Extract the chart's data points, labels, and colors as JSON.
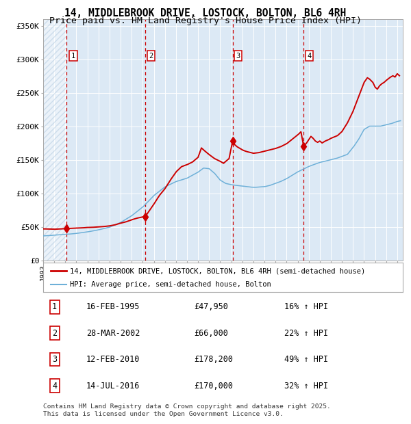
{
  "title": "14, MIDDLEBROOK DRIVE, LOSTOCK, BOLTON, BL6 4RH",
  "subtitle": "Price paid vs. HM Land Registry's House Price Index (HPI)",
  "ylim": [
    0,
    360000
  ],
  "yticks": [
    0,
    50000,
    100000,
    150000,
    200000,
    250000,
    300000,
    350000
  ],
  "ytick_labels": [
    "£0",
    "£50K",
    "£100K",
    "£150K",
    "£200K",
    "£250K",
    "£300K",
    "£350K"
  ],
  "plot_bg_color": "#dce9f5",
  "grid_color": "#ffffff",
  "red_line_color": "#cc0000",
  "blue_line_color": "#6eb0d8",
  "vline_color": "#cc0000",
  "sale_dates": [
    1995.12,
    2002.24,
    2010.12,
    2016.54
  ],
  "sale_prices": [
    47950,
    66000,
    178200,
    170000
  ],
  "sale_labels": [
    "1",
    "2",
    "3",
    "4"
  ],
  "legend_entries": [
    "14, MIDDLEBROOK DRIVE, LOSTOCK, BOLTON, BL6 4RH (semi-detached house)",
    "HPI: Average price, semi-detached house, Bolton"
  ],
  "table_rows": [
    [
      "1",
      "16-FEB-1995",
      "£47,950",
      "16% ↑ HPI"
    ],
    [
      "2",
      "28-MAR-2002",
      "£66,000",
      "22% ↑ HPI"
    ],
    [
      "3",
      "12-FEB-2010",
      "£178,200",
      "49% ↑ HPI"
    ],
    [
      "4",
      "14-JUL-2016",
      "£170,000",
      "32% ↑ HPI"
    ]
  ],
  "footer": "Contains HM Land Registry data © Crown copyright and database right 2025.\nThis data is licensed under the Open Government Licence v3.0.",
  "hpi_waypoints": [
    [
      1993.0,
      37000
    ],
    [
      1993.5,
      37500
    ],
    [
      1994.0,
      38200
    ],
    [
      1994.5,
      38800
    ],
    [
      1995.0,
      39500
    ],
    [
      1995.5,
      40000
    ],
    [
      1996.0,
      40800
    ],
    [
      1997.0,
      43000
    ],
    [
      1998.0,
      46000
    ],
    [
      1999.0,
      50000
    ],
    [
      2000.0,
      57000
    ],
    [
      2001.0,
      67000
    ],
    [
      2002.0,
      80000
    ],
    [
      2003.0,
      97000
    ],
    [
      2004.0,
      110000
    ],
    [
      2005.0,
      118000
    ],
    [
      2006.0,
      123000
    ],
    [
      2007.0,
      132000
    ],
    [
      2007.5,
      138000
    ],
    [
      2008.0,
      137000
    ],
    [
      2008.5,
      130000
    ],
    [
      2009.0,
      120000
    ],
    [
      2009.5,
      115000
    ],
    [
      2010.0,
      113000
    ],
    [
      2010.5,
      112000
    ],
    [
      2011.0,
      111000
    ],
    [
      2011.5,
      110000
    ],
    [
      2012.0,
      109000
    ],
    [
      2012.5,
      109500
    ],
    [
      2013.0,
      110000
    ],
    [
      2013.5,
      112000
    ],
    [
      2014.0,
      115000
    ],
    [
      2014.5,
      118000
    ],
    [
      2015.0,
      122000
    ],
    [
      2015.5,
      127000
    ],
    [
      2016.0,
      132000
    ],
    [
      2016.5,
      136000
    ],
    [
      2017.0,
      140000
    ],
    [
      2017.5,
      143000
    ],
    [
      2018.0,
      146000
    ],
    [
      2018.5,
      148000
    ],
    [
      2019.0,
      150000
    ],
    [
      2019.5,
      152000
    ],
    [
      2020.0,
      155000
    ],
    [
      2020.5,
      158000
    ],
    [
      2021.0,
      168000
    ],
    [
      2021.5,
      180000
    ],
    [
      2022.0,
      195000
    ],
    [
      2022.5,
      200000
    ],
    [
      2023.0,
      200000
    ],
    [
      2023.5,
      200000
    ],
    [
      2024.0,
      202000
    ],
    [
      2024.5,
      204000
    ],
    [
      2025.0,
      207000
    ],
    [
      2025.3,
      208000
    ]
  ],
  "prop_waypoints": [
    [
      1993.0,
      47500
    ],
    [
      1993.5,
      47200
    ],
    [
      1994.0,
      47000
    ],
    [
      1994.5,
      47200
    ],
    [
      1995.12,
      47950
    ],
    [
      1995.5,
      48200
    ],
    [
      1996.0,
      48500
    ],
    [
      1996.5,
      48800
    ],
    [
      1997.0,
      49500
    ],
    [
      1997.5,
      49800
    ],
    [
      1998.0,
      50500
    ],
    [
      1998.5,
      51000
    ],
    [
      1999.0,
      52000
    ],
    [
      1999.5,
      53500
    ],
    [
      2000.0,
      56000
    ],
    [
      2000.5,
      58000
    ],
    [
      2001.0,
      61000
    ],
    [
      2001.5,
      63500
    ],
    [
      2002.24,
      66000
    ],
    [
      2002.5,
      72000
    ],
    [
      2003.0,
      84000
    ],
    [
      2003.5,
      97000
    ],
    [
      2004.0,
      107000
    ],
    [
      2004.5,
      120000
    ],
    [
      2005.0,
      132000
    ],
    [
      2005.5,
      140000
    ],
    [
      2006.0,
      143000
    ],
    [
      2006.5,
      147000
    ],
    [
      2007.0,
      154000
    ],
    [
      2007.3,
      168000
    ],
    [
      2007.5,
      165000
    ],
    [
      2008.0,
      158000
    ],
    [
      2008.5,
      152000
    ],
    [
      2009.0,
      148000
    ],
    [
      2009.3,
      145000
    ],
    [
      2009.5,
      148000
    ],
    [
      2009.8,
      152000
    ],
    [
      2010.12,
      178200
    ],
    [
      2010.3,
      173000
    ],
    [
      2010.5,
      170000
    ],
    [
      2010.8,
      167000
    ],
    [
      2011.0,
      165000
    ],
    [
      2011.3,
      163000
    ],
    [
      2011.5,
      162000
    ],
    [
      2011.8,
      161000
    ],
    [
      2012.0,
      160000
    ],
    [
      2012.5,
      161000
    ],
    [
      2013.0,
      163000
    ],
    [
      2013.5,
      165000
    ],
    [
      2014.0,
      167000
    ],
    [
      2014.5,
      170000
    ],
    [
      2015.0,
      174000
    ],
    [
      2015.3,
      178000
    ],
    [
      2015.6,
      182000
    ],
    [
      2016.0,
      187000
    ],
    [
      2016.3,
      192000
    ],
    [
      2016.54,
      170000
    ],
    [
      2016.8,
      175000
    ],
    [
      2017.0,
      180000
    ],
    [
      2017.2,
      185000
    ],
    [
      2017.4,
      182000
    ],
    [
      2017.6,
      178000
    ],
    [
      2017.8,
      176000
    ],
    [
      2018.0,
      178000
    ],
    [
      2018.2,
      175000
    ],
    [
      2018.5,
      178000
    ],
    [
      2018.8,
      180000
    ],
    [
      2019.0,
      182000
    ],
    [
      2019.3,
      184000
    ],
    [
      2019.6,
      186000
    ],
    [
      2020.0,
      192000
    ],
    [
      2020.5,
      205000
    ],
    [
      2021.0,
      222000
    ],
    [
      2021.3,
      235000
    ],
    [
      2021.6,
      248000
    ],
    [
      2022.0,
      265000
    ],
    [
      2022.3,
      272000
    ],
    [
      2022.5,
      270000
    ],
    [
      2022.8,
      265000
    ],
    [
      2023.0,
      258000
    ],
    [
      2023.2,
      255000
    ],
    [
      2023.4,
      260000
    ],
    [
      2023.6,
      263000
    ],
    [
      2023.8,
      265000
    ],
    [
      2024.0,
      268000
    ],
    [
      2024.3,
      272000
    ],
    [
      2024.6,
      275000
    ],
    [
      2024.8,
      273000
    ],
    [
      2025.0,
      278000
    ],
    [
      2025.2,
      275000
    ]
  ]
}
